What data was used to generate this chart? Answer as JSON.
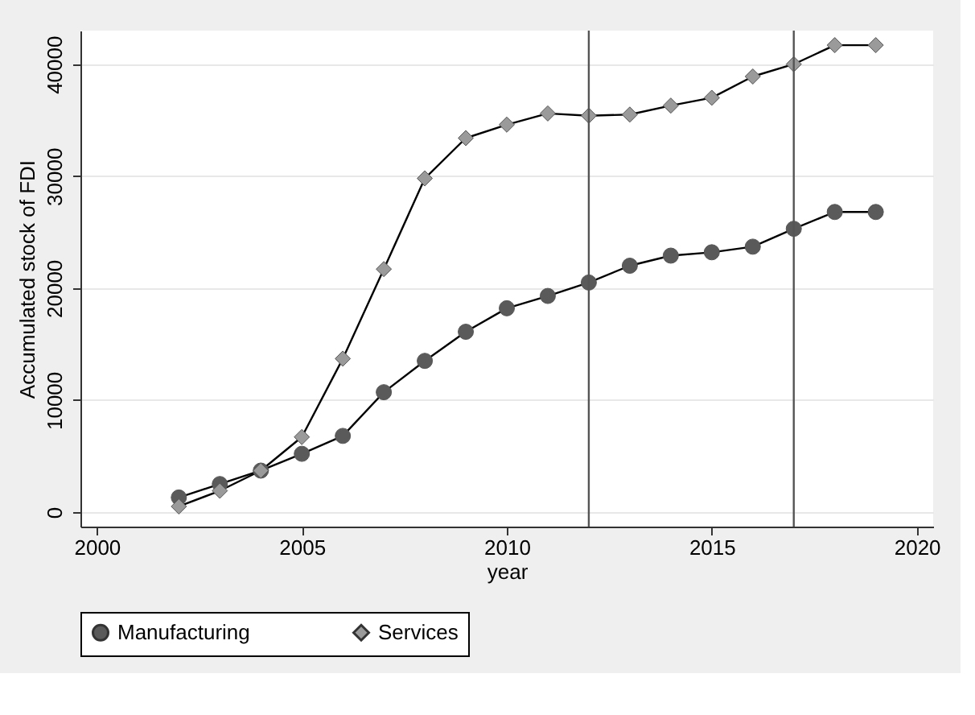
{
  "chart_data": {
    "type": "line",
    "xlabel": "year",
    "ylabel": "Accumulated stock of FDI",
    "x": [
      2002,
      2003,
      2004,
      2005,
      2006,
      2007,
      2008,
      2009,
      2010,
      2011,
      2012,
      2013,
      2014,
      2015,
      2016,
      2017,
      2018,
      2019
    ],
    "series": [
      {
        "name": "Manufacturing",
        "color": "#5a5a5a",
        "marker": "circle",
        "values": [
          1300,
          2500,
          3700,
          5200,
          6800,
          10700,
          13500,
          16100,
          18200,
          19300,
          20500,
          22000,
          22900,
          23200,
          23700,
          25300,
          26800,
          26800
        ]
      },
      {
        "name": "Services",
        "color": "#9a9a9a",
        "marker": "diamond",
        "values": [
          500,
          1900,
          3700,
          6700,
          13700,
          21700,
          29800,
          33400,
          34600,
          35600,
          35400,
          35500,
          36300,
          37000,
          38900,
          40000,
          41700,
          41700
        ]
      }
    ],
    "xlim": [
      1999.6,
      2020.4
    ],
    "xticks": [
      2000,
      2005,
      2010,
      2015,
      2020
    ],
    "ylim": [
      -1300,
      43000
    ],
    "yticks": [
      0,
      10000,
      20000,
      30000,
      40000
    ],
    "ref_lines": [
      {
        "axis": "x",
        "value": 2012,
        "color": "#555555"
      },
      {
        "axis": "x",
        "value": 2017,
        "color": "#555555"
      }
    ],
    "grid": "y",
    "legend": "bottom",
    "line_style": "solid"
  }
}
